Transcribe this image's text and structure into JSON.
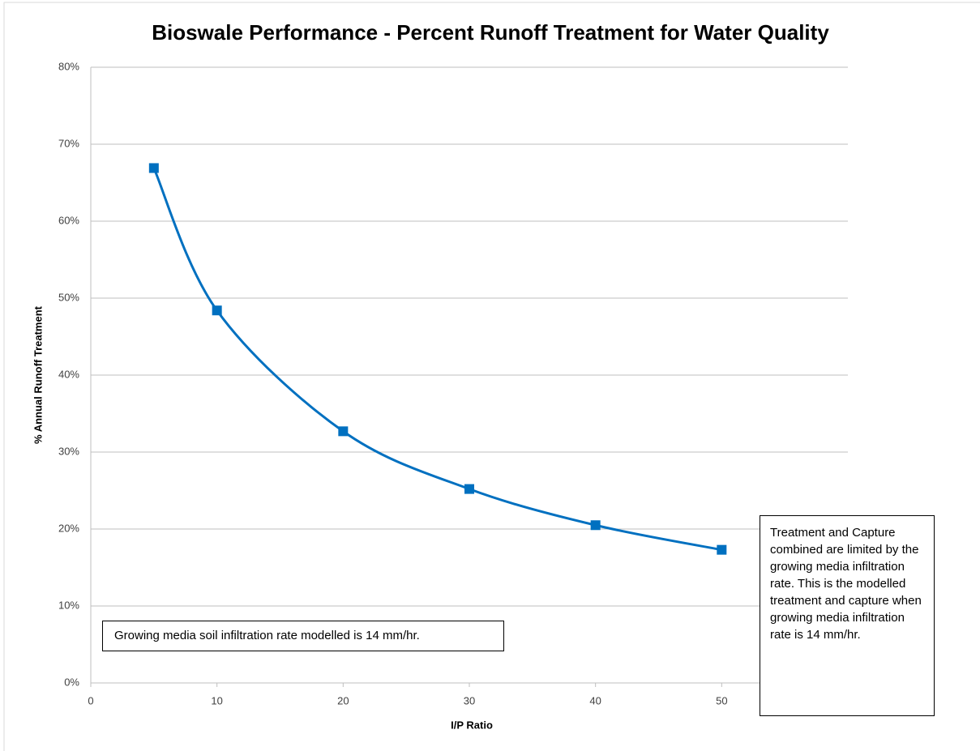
{
  "chart_data": {
    "type": "line",
    "title": "Bioswale Performance - Percent Runoff Treatment for Water Quality",
    "x_label": "I/P Ratio",
    "y_label": "% Annual Runoff Treatment",
    "series": [
      {
        "name": "% Annual Runoff Treatment",
        "color": "#0070c0",
        "x": [
          5,
          10,
          20,
          30,
          40,
          50
        ],
        "values": [
          66.9,
          48.4,
          32.7,
          25.2,
          20.5,
          17.3
        ]
      }
    ],
    "xlim": [
      0,
      60
    ],
    "xticks": [
      0,
      10,
      20,
      30,
      40,
      50
    ],
    "ylim": [
      0,
      80
    ],
    "yticks": [
      {
        "value": 0,
        "label": "0%"
      },
      {
        "value": 10,
        "label": "10%"
      },
      {
        "value": 20,
        "label": "20%"
      },
      {
        "value": 30,
        "label": "30%"
      },
      {
        "value": 40,
        "label": "40%"
      },
      {
        "value": 50,
        "label": "50%"
      },
      {
        "value": 60,
        "label": "60%"
      },
      {
        "value": 70,
        "label": "70%"
      },
      {
        "value": 80,
        "label": "80%"
      }
    ],
    "grid": true,
    "annotations": [
      "Growing media soil infiltration rate modelled is 14 mm/hr.",
      "Treatment and Capture combined are limited by the  growing media infiltration rate. This is the modelled treatment and capture when growing media infiltration rate is 14 mm/hr."
    ]
  }
}
